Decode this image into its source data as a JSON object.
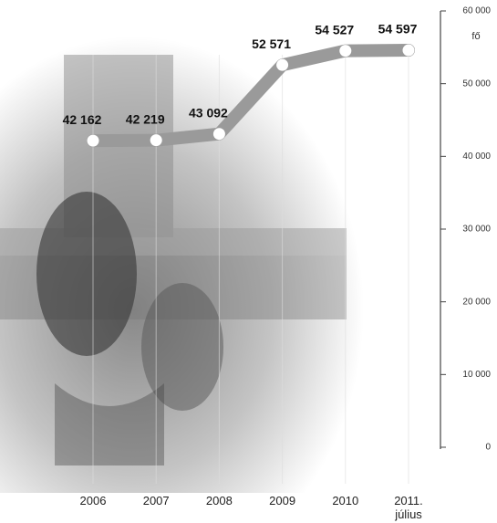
{
  "chart_data": {
    "type": "line",
    "unit": "fő",
    "categories": [
      "2006",
      "2007",
      "2008",
      "2009",
      "2010",
      "2011. július"
    ],
    "values": [
      42162,
      42219,
      43092,
      52571,
      54527,
      54597
    ],
    "value_labels": [
      "42 162",
      "42 219",
      "43 092",
      "52 571",
      "54 527",
      "54 597"
    ],
    "color": "#9a9a9a",
    "ylim": [
      0,
      60000
    ],
    "yticks": [
      0,
      {
        "value": 10000,
        "label": "10 000"
      },
      {
        "value": 20000,
        "label": "20 000"
      },
      {
        "value": 30000,
        "label": "30 000"
      },
      {
        "value": 40000,
        "label": "40 000"
      },
      {
        "value": 50000,
        "label": "50 000"
      },
      {
        "value": 60000,
        "label": "60 000"
      }
    ]
  }
}
